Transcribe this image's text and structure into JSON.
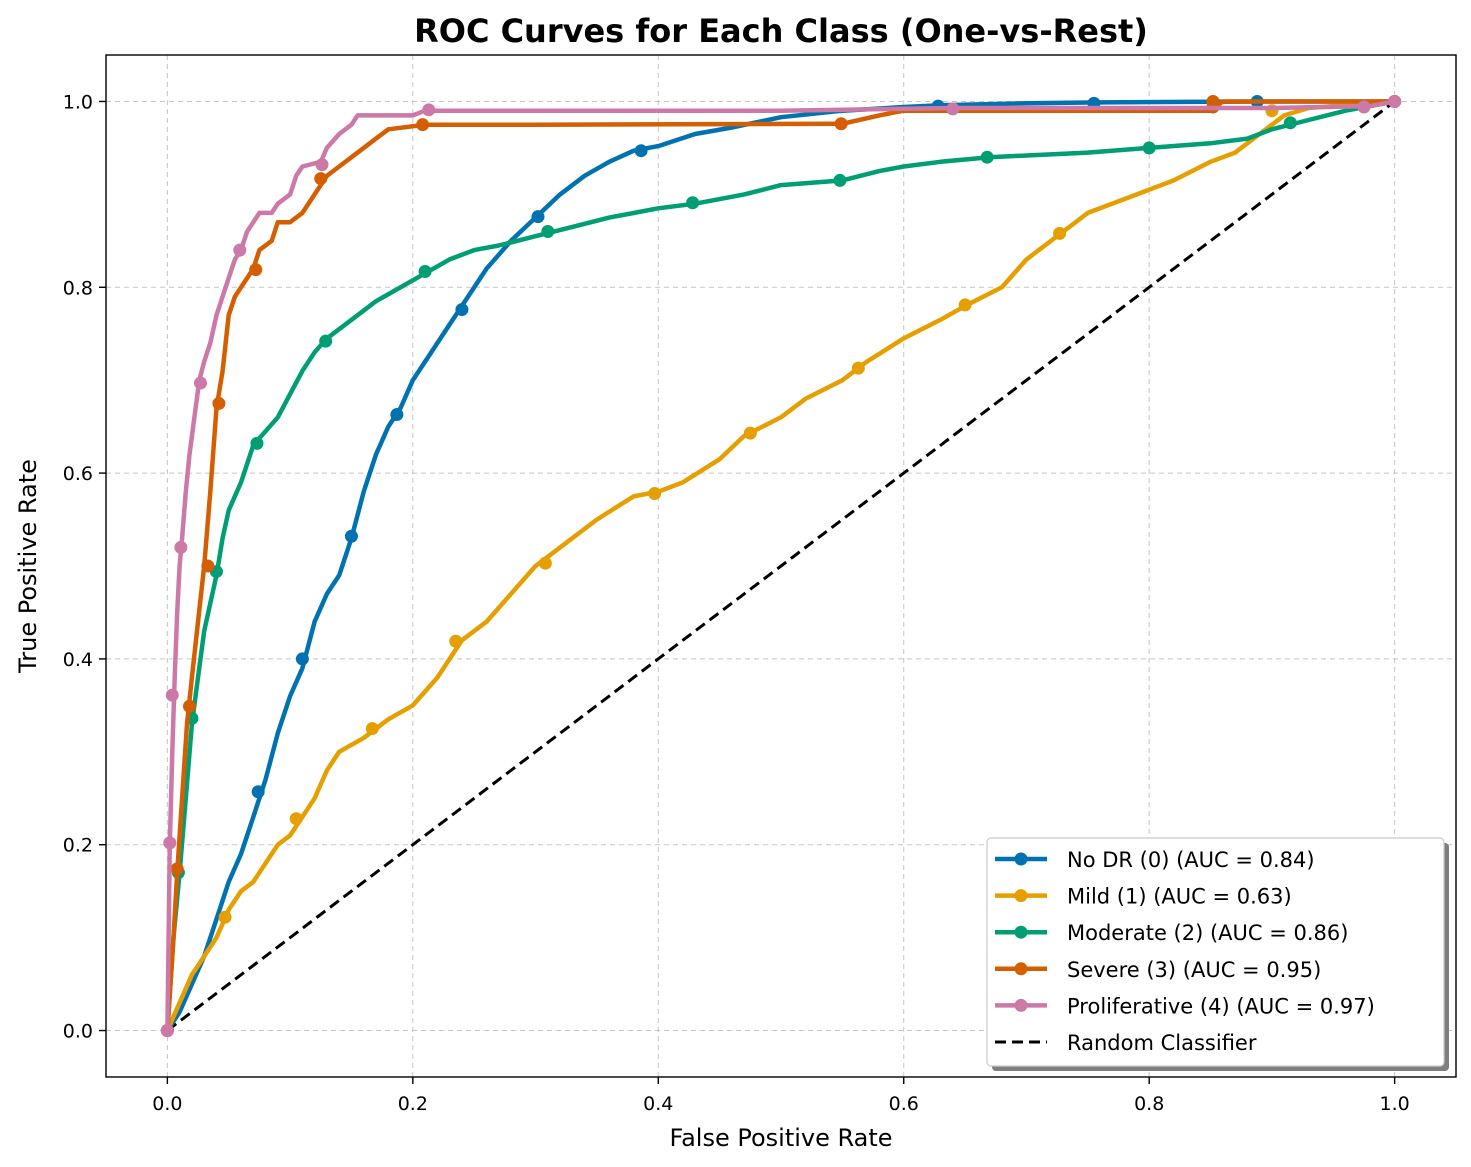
{
  "chart_data": {
    "type": "line",
    "title": "ROC Curves for Each Class (One-vs-Rest)",
    "xlabel": "False Positive Rate",
    "ylabel": "True Positive Rate",
    "xlim": [
      -0.05,
      1.05
    ],
    "ylim": [
      -0.05,
      1.05
    ],
    "xticks": [
      0.0,
      0.2,
      0.4,
      0.6,
      0.8,
      1.0
    ],
    "yticks": [
      0.0,
      0.2,
      0.4,
      0.6,
      0.8,
      1.0
    ],
    "xtick_labels": [
      "0.0",
      "0.2",
      "0.4",
      "0.6",
      "0.8",
      "1.0"
    ],
    "ytick_labels": [
      "0.0",
      "0.2",
      "0.4",
      "0.6",
      "0.8",
      "1.0"
    ],
    "grid": true,
    "legend_position": "lower-right",
    "series": [
      {
        "name": "No DR (0) (AUC = 0.84)",
        "color": "#0072b2",
        "style": "solid",
        "points": [
          [
            0,
            0
          ],
          [
            0.01,
            0.02
          ],
          [
            0.02,
            0.05
          ],
          [
            0.03,
            0.08
          ],
          [
            0.04,
            0.12
          ],
          [
            0.05,
            0.16
          ],
          [
            0.06,
            0.19
          ],
          [
            0.07,
            0.23
          ],
          [
            0.08,
            0.27
          ],
          [
            0.09,
            0.32
          ],
          [
            0.1,
            0.36
          ],
          [
            0.11,
            0.39
          ],
          [
            0.12,
            0.44
          ],
          [
            0.13,
            0.47
          ],
          [
            0.14,
            0.49
          ],
          [
            0.15,
            0.53
          ],
          [
            0.16,
            0.58
          ],
          [
            0.17,
            0.62
          ],
          [
            0.18,
            0.65
          ],
          [
            0.19,
            0.67
          ],
          [
            0.2,
            0.7
          ],
          [
            0.22,
            0.74
          ],
          [
            0.24,
            0.78
          ],
          [
            0.26,
            0.82
          ],
          [
            0.28,
            0.85
          ],
          [
            0.3,
            0.875
          ],
          [
            0.32,
            0.9
          ],
          [
            0.34,
            0.92
          ],
          [
            0.36,
            0.935
          ],
          [
            0.38,
            0.947
          ],
          [
            0.4,
            0.952
          ],
          [
            0.43,
            0.965
          ],
          [
            0.46,
            0.972
          ],
          [
            0.5,
            0.983
          ],
          [
            0.55,
            0.99
          ],
          [
            0.6,
            0.994
          ],
          [
            0.63,
            0.996
          ],
          [
            0.7,
            0.998
          ],
          [
            0.76,
            0.999
          ],
          [
            0.89,
            1.0
          ],
          [
            1.0,
            1.0
          ]
        ],
        "markers": [
          [
            0,
            0
          ],
          [
            0.074,
            0.257
          ],
          [
            0.11,
            0.4
          ],
          [
            0.15,
            0.532
          ],
          [
            0.187,
            0.663
          ],
          [
            0.24,
            0.776
          ],
          [
            0.302,
            0.876
          ],
          [
            0.386,
            0.947
          ],
          [
            0.628,
            0.995
          ],
          [
            0.755,
            0.998
          ],
          [
            0.888,
            1.0
          ],
          [
            1.0,
            1.0
          ]
        ]
      },
      {
        "name": "Mild (1) (AUC = 0.63)",
        "color": "#e69f00",
        "style": "solid",
        "points": [
          [
            0,
            0
          ],
          [
            0.01,
            0.03
          ],
          [
            0.02,
            0.06
          ],
          [
            0.03,
            0.08
          ],
          [
            0.04,
            0.1
          ],
          [
            0.05,
            0.13
          ],
          [
            0.06,
            0.15
          ],
          [
            0.07,
            0.16
          ],
          [
            0.08,
            0.18
          ],
          [
            0.09,
            0.2
          ],
          [
            0.1,
            0.21
          ],
          [
            0.11,
            0.23
          ],
          [
            0.12,
            0.25
          ],
          [
            0.13,
            0.28
          ],
          [
            0.14,
            0.3
          ],
          [
            0.16,
            0.315
          ],
          [
            0.18,
            0.335
          ],
          [
            0.2,
            0.35
          ],
          [
            0.22,
            0.38
          ],
          [
            0.24,
            0.42
          ],
          [
            0.26,
            0.44
          ],
          [
            0.28,
            0.47
          ],
          [
            0.3,
            0.5
          ],
          [
            0.32,
            0.52
          ],
          [
            0.35,
            0.55
          ],
          [
            0.38,
            0.575
          ],
          [
            0.4,
            0.58
          ],
          [
            0.42,
            0.59
          ],
          [
            0.45,
            0.615
          ],
          [
            0.47,
            0.64
          ],
          [
            0.5,
            0.66
          ],
          [
            0.52,
            0.68
          ],
          [
            0.55,
            0.7
          ],
          [
            0.57,
            0.72
          ],
          [
            0.6,
            0.745
          ],
          [
            0.63,
            0.765
          ],
          [
            0.65,
            0.78
          ],
          [
            0.68,
            0.8
          ],
          [
            0.7,
            0.83
          ],
          [
            0.73,
            0.86
          ],
          [
            0.75,
            0.88
          ],
          [
            0.78,
            0.895
          ],
          [
            0.8,
            0.905
          ],
          [
            0.82,
            0.915
          ],
          [
            0.85,
            0.935
          ],
          [
            0.87,
            0.945
          ],
          [
            0.89,
            0.965
          ],
          [
            0.91,
            0.985
          ],
          [
            0.93,
            0.993
          ],
          [
            0.95,
            0.995
          ],
          [
            1.0,
            1.0
          ]
        ],
        "markers": [
          [
            0,
            0
          ],
          [
            0.047,
            0.122
          ],
          [
            0.105,
            0.228
          ],
          [
            0.167,
            0.325
          ],
          [
            0.235,
            0.419
          ],
          [
            0.308,
            0.503
          ],
          [
            0.397,
            0.578
          ],
          [
            0.475,
            0.643
          ],
          [
            0.563,
            0.713
          ],
          [
            0.65,
            0.781
          ],
          [
            0.727,
            0.858
          ],
          [
            0.9,
            0.99
          ],
          [
            1.0,
            1.0
          ]
        ]
      },
      {
        "name": "Moderate (2) (AUC = 0.86)",
        "color": "#009e73",
        "style": "solid",
        "points": [
          [
            0,
            0
          ],
          [
            0.005,
            0.1
          ],
          [
            0.01,
            0.17
          ],
          [
            0.015,
            0.25
          ],
          [
            0.02,
            0.33
          ],
          [
            0.025,
            0.38
          ],
          [
            0.03,
            0.43
          ],
          [
            0.035,
            0.46
          ],
          [
            0.04,
            0.49
          ],
          [
            0.045,
            0.53
          ],
          [
            0.05,
            0.56
          ],
          [
            0.06,
            0.59
          ],
          [
            0.07,
            0.63
          ],
          [
            0.08,
            0.645
          ],
          [
            0.09,
            0.66
          ],
          [
            0.1,
            0.685
          ],
          [
            0.11,
            0.71
          ],
          [
            0.12,
            0.73
          ],
          [
            0.13,
            0.745
          ],
          [
            0.15,
            0.765
          ],
          [
            0.17,
            0.785
          ],
          [
            0.19,
            0.8
          ],
          [
            0.21,
            0.815
          ],
          [
            0.23,
            0.83
          ],
          [
            0.25,
            0.84
          ],
          [
            0.27,
            0.845
          ],
          [
            0.3,
            0.855
          ],
          [
            0.33,
            0.865
          ],
          [
            0.36,
            0.875
          ],
          [
            0.4,
            0.885
          ],
          [
            0.43,
            0.89
          ],
          [
            0.47,
            0.9
          ],
          [
            0.5,
            0.91
          ],
          [
            0.55,
            0.915
          ],
          [
            0.58,
            0.925
          ],
          [
            0.6,
            0.93
          ],
          [
            0.63,
            0.935
          ],
          [
            0.67,
            0.94
          ],
          [
            0.75,
            0.945
          ],
          [
            0.8,
            0.95
          ],
          [
            0.85,
            0.955
          ],
          [
            0.88,
            0.96
          ],
          [
            0.9,
            0.97
          ],
          [
            0.93,
            0.98
          ],
          [
            0.96,
            0.99
          ],
          [
            1.0,
            1.0
          ]
        ],
        "markers": [
          [
            0,
            0
          ],
          [
            0.009,
            0.17
          ],
          [
            0.02,
            0.336
          ],
          [
            0.04,
            0.494
          ],
          [
            0.073,
            0.632
          ],
          [
            0.129,
            0.742
          ],
          [
            0.21,
            0.817
          ],
          [
            0.31,
            0.86
          ],
          [
            0.428,
            0.891
          ],
          [
            0.548,
            0.915
          ],
          [
            0.668,
            0.94
          ],
          [
            0.8,
            0.95
          ],
          [
            0.915,
            0.977
          ],
          [
            1.0,
            1.0
          ]
        ]
      },
      {
        "name": "Severe (3) (AUC = 0.95)",
        "color": "#d55e00",
        "style": "solid",
        "points": [
          [
            0,
            0
          ],
          [
            0.005,
            0.1
          ],
          [
            0.008,
            0.17
          ],
          [
            0.012,
            0.25
          ],
          [
            0.016,
            0.33
          ],
          [
            0.02,
            0.38
          ],
          [
            0.025,
            0.44
          ],
          [
            0.03,
            0.5
          ],
          [
            0.035,
            0.58
          ],
          [
            0.04,
            0.67
          ],
          [
            0.045,
            0.71
          ],
          [
            0.05,
            0.77
          ],
          [
            0.055,
            0.79
          ],
          [
            0.06,
            0.8
          ],
          [
            0.07,
            0.82
          ],
          [
            0.075,
            0.84
          ],
          [
            0.085,
            0.85
          ],
          [
            0.09,
            0.87
          ],
          [
            0.1,
            0.87
          ],
          [
            0.11,
            0.88
          ],
          [
            0.12,
            0.9
          ],
          [
            0.13,
            0.92
          ],
          [
            0.14,
            0.93
          ],
          [
            0.15,
            0.94
          ],
          [
            0.16,
            0.95
          ],
          [
            0.17,
            0.96
          ],
          [
            0.18,
            0.97
          ],
          [
            0.21,
            0.975
          ],
          [
            0.3,
            0.975
          ],
          [
            0.55,
            0.976
          ],
          [
            0.58,
            0.985
          ],
          [
            0.6,
            0.99
          ],
          [
            0.85,
            0.99
          ],
          [
            0.86,
            1.0
          ],
          [
            1.0,
            1.0
          ]
        ],
        "markers": [
          [
            0,
            0
          ],
          [
            0.008,
            0.174
          ],
          [
            0.018,
            0.349
          ],
          [
            0.033,
            0.5
          ],
          [
            0.042,
            0.675
          ],
          [
            0.072,
            0.819
          ],
          [
            0.125,
            0.917
          ],
          [
            0.208,
            0.975
          ],
          [
            0.549,
            0.976
          ],
          [
            0.852,
            0.994
          ],
          [
            0.852,
            1.0
          ],
          [
            1.0,
            1.0
          ]
        ]
      },
      {
        "name": "Proliferative (4) (AUC = 0.97)",
        "color": "#cc79a7",
        "style": "solid",
        "points": [
          [
            0,
            0
          ],
          [
            0.002,
            0.2
          ],
          [
            0.004,
            0.3
          ],
          [
            0.006,
            0.38
          ],
          [
            0.008,
            0.45
          ],
          [
            0.01,
            0.5
          ],
          [
            0.012,
            0.53
          ],
          [
            0.015,
            0.58
          ],
          [
            0.018,
            0.62
          ],
          [
            0.022,
            0.66
          ],
          [
            0.026,
            0.7
          ],
          [
            0.03,
            0.72
          ],
          [
            0.035,
            0.74
          ],
          [
            0.04,
            0.77
          ],
          [
            0.045,
            0.79
          ],
          [
            0.05,
            0.81
          ],
          [
            0.055,
            0.83
          ],
          [
            0.06,
            0.84
          ],
          [
            0.065,
            0.86
          ],
          [
            0.07,
            0.87
          ],
          [
            0.075,
            0.88
          ],
          [
            0.085,
            0.88
          ],
          [
            0.09,
            0.89
          ],
          [
            0.1,
            0.9
          ],
          [
            0.105,
            0.92
          ],
          [
            0.11,
            0.93
          ],
          [
            0.125,
            0.935
          ],
          [
            0.13,
            0.95
          ],
          [
            0.14,
            0.965
          ],
          [
            0.15,
            0.975
          ],
          [
            0.155,
            0.985
          ],
          [
            0.2,
            0.985
          ],
          [
            0.21,
            0.99
          ],
          [
            0.25,
            0.99
          ],
          [
            0.5,
            0.99
          ],
          [
            0.64,
            0.993
          ],
          [
            0.9,
            0.993
          ],
          [
            0.98,
            0.995
          ],
          [
            1.0,
            1.0
          ]
        ],
        "markers": [
          [
            0,
            0
          ],
          [
            0.002,
            0.202
          ],
          [
            0.004,
            0.361
          ],
          [
            0.011,
            0.52
          ],
          [
            0.027,
            0.697
          ],
          [
            0.059,
            0.84
          ],
          [
            0.126,
            0.932
          ],
          [
            0.213,
            0.991
          ],
          [
            0.64,
            0.992
          ],
          [
            0.975,
            0.994
          ],
          [
            1.0,
            1.0
          ]
        ]
      },
      {
        "name": "Random Classifier",
        "color": "#000000",
        "style": "dashed",
        "points": [
          [
            0,
            0
          ],
          [
            1,
            1
          ]
        ],
        "markers": []
      }
    ]
  }
}
